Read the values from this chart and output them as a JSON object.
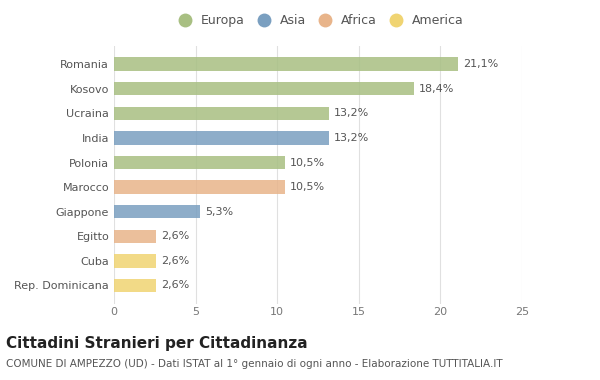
{
  "countries": [
    "Romania",
    "Kosovo",
    "Ucraina",
    "India",
    "Polonia",
    "Marocco",
    "Giappone",
    "Egitto",
    "Cuba",
    "Rep. Dominicana"
  ],
  "values": [
    21.1,
    18.4,
    13.2,
    13.2,
    10.5,
    10.5,
    5.3,
    2.6,
    2.6,
    2.6
  ],
  "labels": [
    "21,1%",
    "18,4%",
    "13,2%",
    "13,2%",
    "10,5%",
    "10,5%",
    "5,3%",
    "2,6%",
    "2,6%",
    "2,6%"
  ],
  "continents": [
    "Europa",
    "Europa",
    "Europa",
    "Asia",
    "Europa",
    "Africa",
    "Asia",
    "Africa",
    "America",
    "America"
  ],
  "colors": {
    "Europa": "#a8bf82",
    "Asia": "#7a9fc0",
    "Africa": "#e8b48a",
    "America": "#f0d472"
  },
  "legend_order": [
    "Europa",
    "Asia",
    "Africa",
    "America"
  ],
  "title": "Cittadini Stranieri per Cittadinanza",
  "subtitle": "COMUNE DI AMPEZZO (UD) - Dati ISTAT al 1° gennaio di ogni anno - Elaborazione TUTTITALIA.IT",
  "xlim": [
    0,
    25
  ],
  "xticks": [
    0,
    5,
    10,
    15,
    20,
    25
  ],
  "background_color": "#ffffff",
  "grid_color": "#e0e0e0",
  "bar_height": 0.55,
  "title_fontsize": 11,
  "subtitle_fontsize": 7.5,
  "label_fontsize": 8,
  "tick_fontsize": 8,
  "legend_fontsize": 9
}
